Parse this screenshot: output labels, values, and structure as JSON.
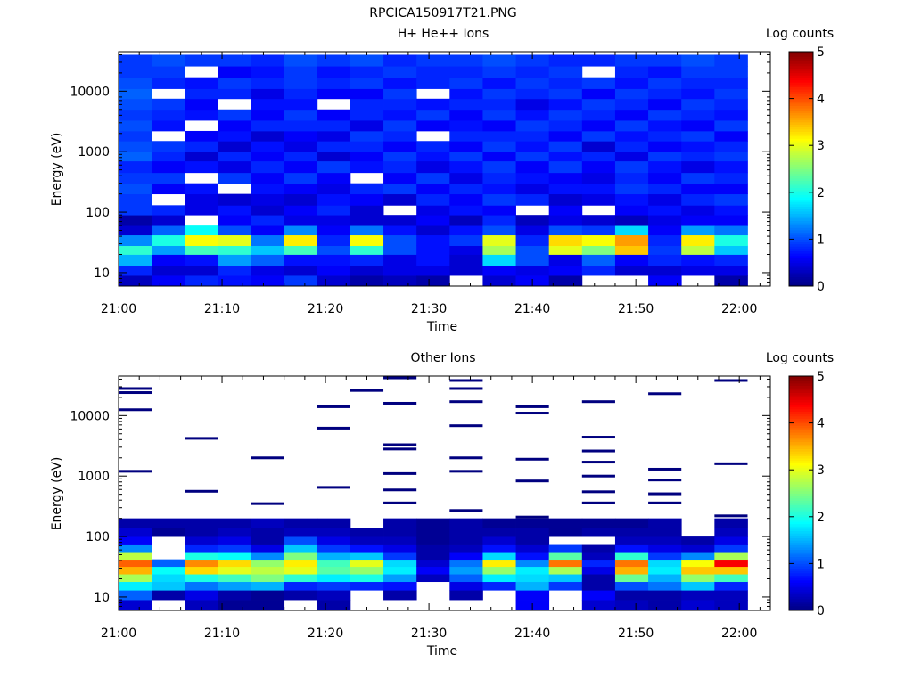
{
  "figure": {
    "title": "RPCICA150917T21.PNG"
  },
  "chart_data": [
    {
      "type": "heatmap",
      "title": "H+ He++ Ions",
      "xlabel": "Time",
      "ylabel": "Energy (eV)",
      "x_tick_labels": [
        "21:00",
        "21:10",
        "21:20",
        "21:30",
        "21:40",
        "21:50",
        "22:00"
      ],
      "x_ticks_min": [
        0,
        10,
        20,
        30,
        40,
        50,
        60
      ],
      "xlim_min": [
        0,
        63
      ],
      "y_scale": "log",
      "ylim": [
        6,
        45000
      ],
      "y_tick_labels": [
        "10",
        "100",
        "1000",
        "10000"
      ],
      "y_ticks": [
        10,
        100,
        1000,
        10000
      ],
      "colorbar": {
        "label": "Log counts",
        "ticks": [
          "0",
          "1",
          "2",
          "3",
          "4",
          "5"
        ],
        "range": [
          0,
          5
        ],
        "colormap": "jet"
      },
      "time_bins_min": [
        0,
        3.2,
        6.4,
        9.6,
        12.8,
        16,
        19.2,
        22.4,
        25.6,
        28.8,
        32,
        35.2,
        38.4,
        41.6,
        44.8,
        48,
        51.2,
        54.4,
        57.6
      ],
      "bin_width_min": 3.2,
      "energy_bin_edges_ev": [
        6,
        9,
        13,
        20,
        28,
        42,
        60,
        90,
        130,
        200,
        300,
        450,
        700,
        1000,
        1500,
        2200,
        3300,
        5000,
        7500,
        11000,
        17000,
        26000,
        40000
      ],
      "z_log_counts": [
        [
          0.3,
          0.8,
          1.5,
          2.1,
          1.3,
          0.4,
          0.2,
          0.9,
          0.9,
          1.0,
          0.9,
          0.8,
          1.1,
          1.0,
          0.9,
          1.0,
          0.9,
          1.0,
          1.1,
          1.0,
          0.9,
          0.9
        ],
        [
          0.6,
          0.4,
          0.6,
          1.4,
          2.0,
          1.1,
          0.4,
          0.8,
          null,
          0.6,
          0.9,
          0.6,
          0.8,
          0.9,
          null,
          0.7,
          0.8,
          0.9,
          null,
          0.8,
          0.9,
          1.0
        ],
        [
          0.8,
          0.4,
          0.7,
          2.2,
          3.1,
          1.9,
          null,
          0.5,
          0.5,
          0.7,
          null,
          0.7,
          0.4,
          0.8,
          0.6,
          null,
          0.7,
          0.6,
          0.8,
          0.7,
          null,
          0.9
        ],
        [
          0.7,
          0.8,
          1.4,
          2.1,
          3.0,
          1.0,
          0.6,
          0.7,
          0.4,
          null,
          0.9,
          0.5,
          0.8,
          0.4,
          0.7,
          0.6,
          0.9,
          null,
          0.8,
          0.9,
          0.6,
          0.9
        ],
        [
          0.6,
          0.5,
          1.1,
          1.6,
          1.2,
          0.6,
          0.8,
          0.4,
          0.5,
          0.7,
          0.6,
          0.8,
          0.6,
          0.7,
          0.4,
          0.8,
          0.6,
          0.7,
          0.5,
          0.8,
          0.7,
          0.8
        ],
        [
          0.9,
          0.4,
          0.7,
          2.2,
          3.2,
          1.3,
          0.5,
          0.6,
          0.4,
          0.6,
          0.9,
          0.6,
          0.8,
          0.5,
          0.6,
          0.8,
          0.9,
          0.7,
          0.8,
          0.9,
          0.9,
          1.0
        ],
        [
          0.4,
          0.6,
          0.7,
          1.0,
          0.8,
          0.6,
          0.5,
          0.8,
          0.7,
          0.5,
          0.6,
          0.9,
          0.4,
          0.8,
          0.5,
          0.8,
          0.6,
          null,
          0.6,
          0.8,
          0.7,
          0.9
        ],
        [
          0.2,
          0.4,
          0.8,
          2.1,
          3.1,
          1.2,
          0.4,
          0.4,
          0.6,
          0.8,
          null,
          0.7,
          0.6,
          0.8,
          0.9,
          0.5,
          0.8,
          0.8,
          0.6,
          0.9,
          0.8,
          1.0
        ],
        [
          0.3,
          0.5,
          0.5,
          1.0,
          1.0,
          0.7,
          0.4,
          null,
          0.4,
          0.9,
          0.6,
          0.8,
          0.9,
          0.6,
          0.8,
          0.9,
          0.7,
          0.8,
          0.9,
          0.7,
          0.9,
          0.8
        ],
        [
          0.2,
          0.5,
          0.7,
          0.7,
          0.7,
          0.4,
          0.6,
          0.5,
          0.8,
          0.6,
          0.9,
          0.5,
          0.7,
          0.8,
          null,
          0.6,
          0.9,
          0.7,
          null,
          0.8,
          0.8,
          0.9
        ],
        [
          null,
          0.4,
          0.4,
          0.5,
          0.9,
          0.7,
          0.3,
          0.7,
          0.6,
          0.8,
          0.5,
          0.7,
          0.9,
          0.6,
          0.8,
          0.7,
          0.6,
          0.8,
          0.7,
          0.9,
          0.8,
          0.9
        ],
        [
          0.4,
          0.6,
          1.7,
          2.7,
          3.0,
          1.0,
          0.8,
          0.6,
          0.9,
          0.7,
          0.8,
          0.9,
          0.6,
          0.9,
          0.8,
          0.6,
          0.9,
          0.8,
          0.9,
          0.7,
          0.9,
          1.0
        ],
        [
          0.6,
          0.5,
          1.0,
          1.0,
          0.8,
          0.5,
          0.3,
          null,
          0.8,
          0.5,
          0.7,
          0.6,
          0.9,
          0.7,
          0.8,
          0.9,
          0.7,
          0.5,
          0.8,
          0.9,
          0.8,
          0.9
        ],
        [
          0.2,
          0.6,
          0.5,
          3.0,
          3.3,
          1.0,
          0.5,
          0.6,
          0.4,
          0.7,
          0.6,
          0.9,
          0.7,
          0.9,
          0.6,
          0.8,
          0.9,
          0.7,
          0.9,
          0.8,
          0.9,
          0.8
        ],
        [
          null,
          0.8,
          1.1,
          2.5,
          3.1,
          0.9,
          0.4,
          null,
          0.5,
          0.7,
          0.5,
          0.6,
          0.8,
          0.4,
          0.9,
          0.6,
          0.8,
          0.9,
          0.6,
          0.9,
          null,
          0.8
        ],
        [
          null,
          0.4,
          0.6,
          3.4,
          3.6,
          1.7,
          0.3,
          0.6,
          0.7,
          0.9,
          0.8,
          0.9,
          0.5,
          0.8,
          0.7,
          0.9,
          0.6,
          0.8,
          0.9,
          0.7,
          0.8,
          0.9
        ],
        [
          0.6,
          0.4,
          0.8,
          0.9,
          0.8,
          0.6,
          0.5,
          0.7,
          0.5,
          0.8,
          0.6,
          0.7,
          0.9,
          0.6,
          0.8,
          0.7,
          0.9,
          0.6,
          0.8,
          0.9,
          0.7,
          0.9
        ],
        [
          null,
          0.5,
          0.7,
          2.8,
          3.2,
          1.4,
          0.6,
          0.5,
          0.8,
          0.6,
          0.9,
          0.5,
          0.8,
          0.7,
          0.9,
          0.6,
          0.8,
          0.9,
          0.7,
          0.8,
          0.9,
          1.0
        ],
        [
          0.2,
          0.5,
          0.8,
          1.6,
          2.0,
          1.2,
          0.6,
          0.7,
          0.9,
          0.6,
          0.8,
          0.7,
          0.9,
          0.8,
          0.6,
          0.9,
          0.7,
          0.8,
          0.9,
          0.8,
          0.9,
          0.9
        ]
      ]
    },
    {
      "type": "heatmap",
      "title": "Other Ions",
      "xlabel": "Time",
      "ylabel": "Energy (eV)",
      "x_tick_labels": [
        "21:00",
        "21:10",
        "21:20",
        "21:30",
        "21:40",
        "21:50",
        "22:00"
      ],
      "x_ticks_min": [
        0,
        10,
        20,
        30,
        40,
        50,
        60
      ],
      "xlim_min": [
        0,
        63
      ],
      "y_scale": "log",
      "ylim": [
        6,
        45000
      ],
      "y_tick_labels": [
        "10",
        "100",
        "1000",
        "10000"
      ],
      "y_ticks": [
        10,
        100,
        1000,
        10000
      ],
      "colorbar": {
        "label": "Log counts",
        "ticks": [
          "0",
          "1",
          "2",
          "3",
          "4",
          "5"
        ],
        "range": [
          0,
          5
        ],
        "colormap": "jet"
      },
      "time_bins_min": [
        0,
        3.2,
        6.4,
        9.6,
        12.8,
        16,
        19.2,
        22.4,
        25.6,
        28.8,
        32,
        35.2,
        38.4,
        41.6,
        44.8,
        48,
        51.2,
        54.4,
        57.6
      ],
      "bin_width_min": 3.2,
      "energy_bin_edges_ev": [
        6,
        9,
        13,
        18,
        24,
        32,
        42,
        56,
        75,
        100,
        140,
        200
      ],
      "z_log_counts": [
        [
          0.4,
          1.1,
          1.8,
          2.7,
          3.5,
          3.9,
          2.8,
          1.3,
          0.6,
          0.4,
          0.2
        ],
        [
          null,
          0.2,
          1.6,
          1.7,
          1.9,
          1.1,
          null,
          null,
          null,
          0.1,
          0.2
        ],
        [
          0.3,
          0.5,
          1.2,
          2.0,
          3.3,
          3.7,
          2.0,
          0.8,
          0.4,
          0.2,
          0.2
        ],
        [
          0.1,
          0.2,
          1.4,
          2.2,
          3.0,
          3.3,
          1.9,
          0.9,
          0.5,
          0.3,
          0.2
        ],
        [
          0.1,
          0.1,
          1.5,
          2.5,
          2.8,
          2.6,
          1.3,
          0.5,
          0.2,
          0.2,
          0.3
        ],
        [
          null,
          0.2,
          0.8,
          2.1,
          3.0,
          3.2,
          2.5,
          1.6,
          1.0,
          0.3,
          0.2
        ],
        [
          0.2,
          0.3,
          0.9,
          1.8,
          2.3,
          2.2,
          1.5,
          0.9,
          0.5,
          0.3,
          0.2
        ],
        [
          null,
          null,
          0.8,
          2.0,
          2.6,
          3.0,
          1.6,
          0.7,
          0.3,
          0.2,
          null
        ],
        [
          null,
          0.2,
          0.7,
          1.4,
          1.8,
          1.7,
          0.9,
          0.5,
          0.3,
          0.2,
          0.2
        ],
        [
          null,
          null,
          null,
          0.3,
          0.6,
          0.4,
          0.2,
          0.2,
          0.1,
          0.1,
          0.1
        ],
        [
          null,
          0.2,
          0.5,
          1.1,
          1.4,
          1.2,
          0.6,
          0.3,
          0.2,
          0.2,
          0.2
        ],
        [
          null,
          null,
          0.8,
          1.8,
          2.6,
          3.2,
          1.7,
          0.7,
          0.4,
          0.2,
          0.1
        ],
        [
          0.6,
          0.6,
          1.5,
          1.7,
          1.8,
          1.3,
          0.7,
          0.4,
          0.2,
          0.2,
          0.1
        ],
        [
          null,
          null,
          0.9,
          1.6,
          2.7,
          3.8,
          2.3,
          0.9,
          null,
          0.1,
          0.1
        ],
        [
          0.4,
          0.6,
          0.2,
          0.2,
          0.5,
          0.8,
          0.3,
          0.2,
          null,
          0.2,
          0.1
        ],
        [
          0.3,
          0.2,
          1.0,
          2.4,
          3.5,
          3.8,
          2.1,
          0.7,
          0.3,
          0.2,
          0.1
        ],
        [
          0.2,
          0.2,
          1.2,
          1.5,
          1.8,
          1.7,
          0.9,
          0.5,
          0.3,
          0.2,
          0.2
        ],
        [
          0.4,
          0.3,
          1.6,
          2.6,
          3.4,
          3.1,
          1.3,
          0.4,
          0.2,
          null,
          null
        ],
        [
          0.3,
          0.3,
          0.8,
          2.2,
          3.4,
          4.4,
          2.7,
          0.9,
          0.5,
          0.3,
          0.2
        ]
      ],
      "sparse_lines": [
        {
          "t": 0,
          "ev": [
            28000,
            24000,
            12500,
            1200
          ]
        },
        {
          "t": 6.4,
          "ev": [
            4200,
            560
          ]
        },
        {
          "t": 12.8,
          "ev": [
            2000,
            350
          ]
        },
        {
          "t": 19.2,
          "ev": [
            14000,
            6200,
            650
          ]
        },
        {
          "t": 22.4,
          "ev": [
            26000
          ]
        },
        {
          "t": 25.6,
          "ev": [
            42000,
            16000,
            3300,
            2800,
            1100,
            590,
            360
          ]
        },
        {
          "t": 32,
          "ev": [
            38000,
            28000,
            17000,
            6800,
            2000,
            1200,
            270
          ]
        },
        {
          "t": 38.4,
          "ev": [
            14000,
            11000,
            1900,
            830,
            210
          ]
        },
        {
          "t": 44.8,
          "ev": [
            17000,
            4400,
            2600,
            1700,
            1000,
            550,
            360
          ]
        },
        {
          "t": 51.2,
          "ev": [
            23000,
            1300,
            860,
            510,
            360
          ]
        },
        {
          "t": 57.6,
          "ev": [
            38000,
            1600,
            220
          ]
        }
      ]
    }
  ]
}
